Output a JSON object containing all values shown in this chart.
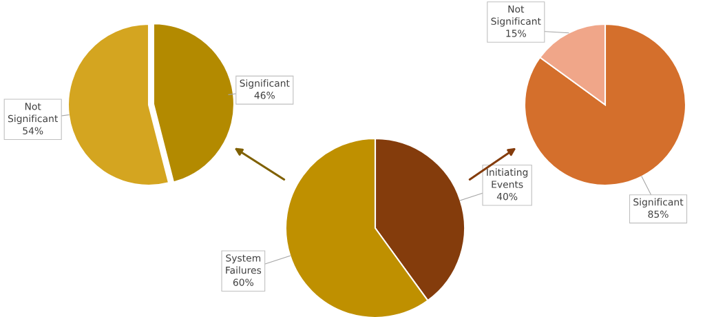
{
  "chart_data": [
    {
      "type": "pie",
      "categories": [
        "Significant",
        "Not Significant"
      ],
      "values": [
        46,
        54
      ],
      "colors": [
        "#b38a00",
        "#d4a520"
      ],
      "value_labels": [
        "46%",
        "54%"
      ]
    },
    {
      "type": "pie",
      "categories": [
        "Significant",
        "Not Significant"
      ],
      "values": [
        85,
        15
      ],
      "colors": [
        "#d46f2c",
        "#f0a689"
      ],
      "value_labels": [
        "85%",
        "15%"
      ]
    },
    {
      "type": "pie",
      "categories": [
        "Initiating Events",
        "System Failures"
      ],
      "values": [
        40,
        60
      ],
      "colors": [
        "#843c0c",
        "#bf9000"
      ],
      "value_labels": [
        "40%",
        "60%"
      ]
    }
  ]
}
